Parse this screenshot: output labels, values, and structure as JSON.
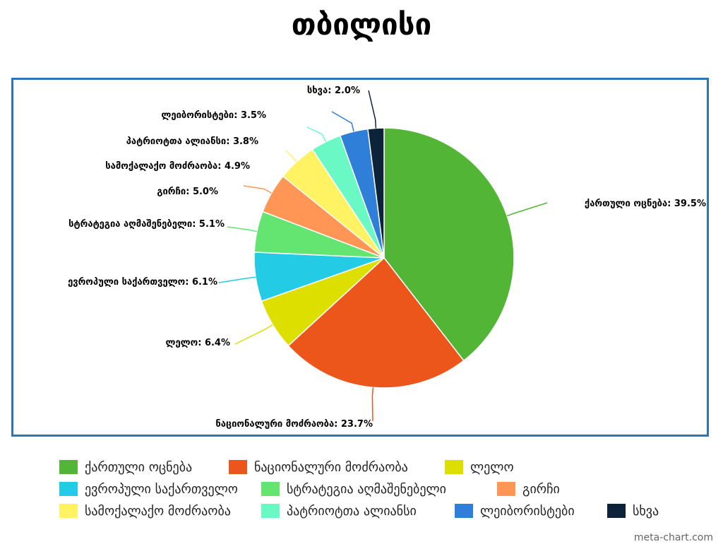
{
  "title": "თბილისი",
  "credit": "meta-chart.com",
  "chart_data": {
    "type": "pie",
    "categories": [
      "ქართული ოცნება",
      "ნაციონალური მოძრაობა",
      "ლელო",
      "ევროპული საქართველო",
      "სტრატეგია აღმაშენებელი",
      "გირჩი",
      "სამოქალაქო მოძრაობა",
      "პატრიოტთა ალიანსი",
      "ლეიბორისტები",
      "სხვა"
    ],
    "values": [
      39.5,
      23.7,
      6.4,
      6.1,
      5.1,
      5.0,
      4.9,
      3.8,
      3.5,
      2.0
    ],
    "data_labels": [
      "ქართული ოცნება: 39.5%",
      "ნაციონალური მოძრაობა: 23.7%",
      "ლელო: 6.4%",
      "ევროპული საქართველო: 6.1%",
      "სტრატეგია აღმაშენებელი: 5.1%",
      "გირჩი: 5.0%",
      "სამოქალაქო მოძრაობა: 4.9%",
      "პატრიოტთა ალიანსი: 3.8%",
      "ლეიბორისტები: 3.5%",
      "სხვა: 2.0%"
    ],
    "colors": [
      "#52b535",
      "#ec561b",
      "#dddf00",
      "#24cbe5",
      "#64e572",
      "#ff9655",
      "#fff263",
      "#6af9c4",
      "#2f7ed8",
      "#0d233a"
    ],
    "legend_position": "bottom"
  }
}
